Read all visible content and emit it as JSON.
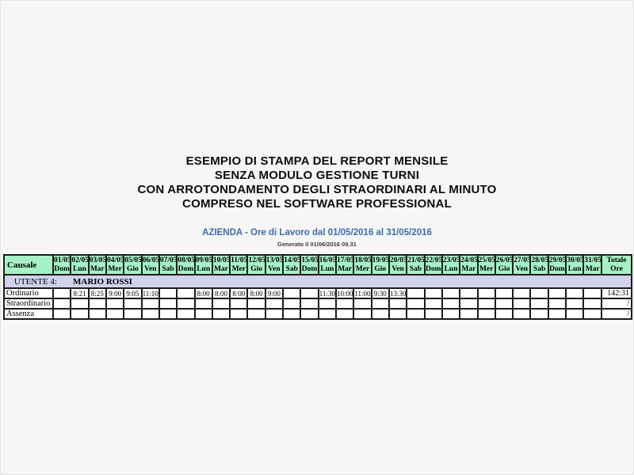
{
  "page": {
    "titles": [
      "ESEMPIO DI STAMPA DEL REPORT MENSILE",
      "SENZA MODULO GESTIONE TURNI",
      "CON ARROTONDAMENTO DEGLI STRAORDINARI AL MINUTO",
      "COMPRESO NEL SOFTWARE PROFESSIONAL"
    ],
    "subtitle": "AZIENDA - Ore di Lavoro dal 01/05/2016 al 31/05/2016",
    "generated": "Generato il 01/06/2016 09.31"
  },
  "colors": {
    "header_bg": "#a4f2c6",
    "user_row_bg": "#d2d2ee",
    "accent_blue": "#3b6bb0"
  },
  "table": {
    "causale_header": "Causale",
    "total_header": [
      "Totale",
      "Ore"
    ],
    "days": [
      {
        "date": "01/05",
        "dow": "Dom"
      },
      {
        "date": "02/05",
        "dow": "Lun"
      },
      {
        "date": "03/05",
        "dow": "Mar"
      },
      {
        "date": "04/05",
        "dow": "Mer"
      },
      {
        "date": "05/05",
        "dow": "Gio"
      },
      {
        "date": "06/05",
        "dow": "Ven"
      },
      {
        "date": "07/05",
        "dow": "Sab"
      },
      {
        "date": "08/05",
        "dow": "Dom"
      },
      {
        "date": "09/05",
        "dow": "Lun"
      },
      {
        "date": "10/05",
        "dow": "Mar"
      },
      {
        "date": "11/05",
        "dow": "Mer"
      },
      {
        "date": "12/05",
        "dow": "Gio"
      },
      {
        "date": "13/05",
        "dow": "Ven"
      },
      {
        "date": "14/05",
        "dow": "Sab"
      },
      {
        "date": "15/05",
        "dow": "Dom"
      },
      {
        "date": "16/05",
        "dow": "Lun"
      },
      {
        "date": "17/05",
        "dow": "Mar"
      },
      {
        "date": "18/05",
        "dow": "Mer"
      },
      {
        "date": "19/05",
        "dow": "Gio"
      },
      {
        "date": "20/05",
        "dow": "Ven"
      },
      {
        "date": "21/05",
        "dow": "Sab"
      },
      {
        "date": "22/05",
        "dow": "Dom"
      },
      {
        "date": "23/05",
        "dow": "Lun"
      },
      {
        "date": "24/05",
        "dow": "Mar"
      },
      {
        "date": "25/05",
        "dow": "Mer"
      },
      {
        "date": "26/05",
        "dow": "Gio"
      },
      {
        "date": "27/05",
        "dow": "Ven"
      },
      {
        "date": "28/05",
        "dow": "Sab"
      },
      {
        "date": "29/05",
        "dow": "Dom"
      },
      {
        "date": "30/05",
        "dow": "Lun"
      },
      {
        "date": "31/05",
        "dow": "Mar"
      }
    ],
    "user_row": {
      "label": "UTENTE 4:",
      "name": "MARIO ROSSI"
    },
    "rows": [
      {
        "label": "Ordinario",
        "values": [
          "",
          "8:21",
          "8:25",
          "9:00",
          "9:05",
          "11:10",
          "",
          "",
          "8:00",
          "8:00",
          "8:00",
          "8:00",
          "9:00",
          "",
          "",
          "11:30",
          "10:00",
          "11:00",
          "9:30",
          "13:30",
          "",
          "",
          "",
          "",
          "",
          "",
          "",
          "",
          "",
          "",
          ""
        ],
        "total": "142:31"
      },
      {
        "label": "Straordinario",
        "values": [
          "",
          "",
          "",
          "",
          "",
          "",
          "",
          "",
          "",
          "",
          "",
          "",
          "",
          "",
          "",
          "",
          "",
          "",
          "",
          "",
          "",
          "",
          "",
          "",
          "",
          "",
          "",
          "",
          "",
          "",
          ""
        ],
        "total": "/"
      },
      {
        "label": "Assenza",
        "values": [
          "",
          "",
          "",
          "",
          "",
          "",
          "",
          "",
          "",
          "",
          "",
          "",
          "",
          "",
          "",
          "",
          "",
          "",
          "",
          "",
          "",
          "",
          "",
          "",
          "",
          "",
          "",
          "",
          "",
          "",
          ""
        ],
        "total": "/"
      }
    ]
  }
}
